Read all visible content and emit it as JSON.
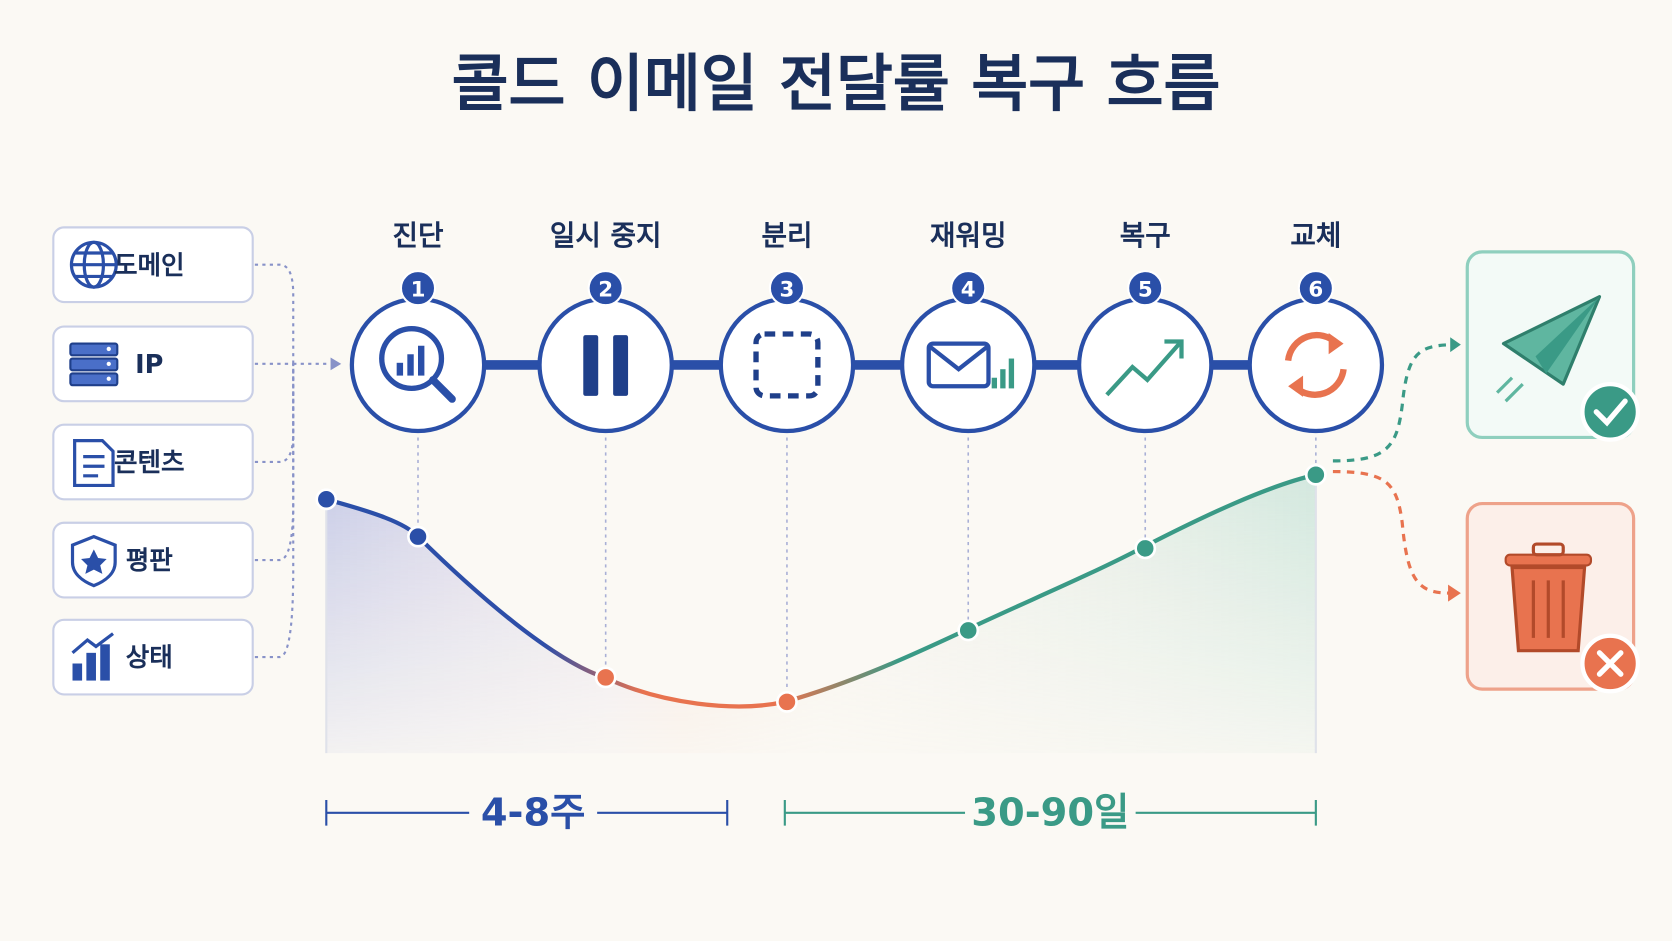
{
  "title": "콜드 이메일 전달률 복구 흐름",
  "inputs": [
    {
      "label": "도메인"
    },
    {
      "label": "IP"
    },
    {
      "label": "콘텐츠"
    },
    {
      "label": "평판"
    },
    {
      "label": "상태"
    }
  ],
  "steps": [
    {
      "number": "1",
      "label": "진단"
    },
    {
      "number": "2",
      "label": "일시 중지"
    },
    {
      "number": "3",
      "label": "분리"
    },
    {
      "number": "4",
      "label": "재워밍"
    },
    {
      "number": "5",
      "label": "복구"
    },
    {
      "number": "6",
      "label": "교체"
    }
  ],
  "phases": [
    {
      "label": "4-8주"
    },
    {
      "label": "30-90일"
    }
  ]
}
